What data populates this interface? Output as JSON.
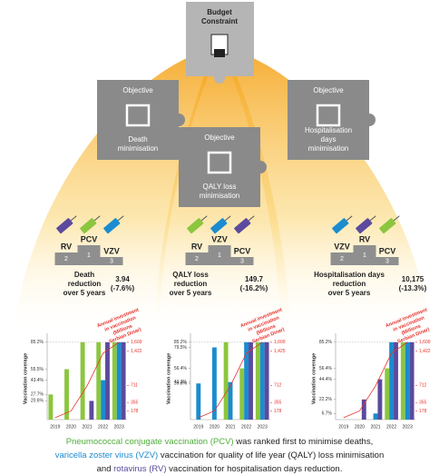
{
  "budget": [
    "Budget",
    "Constraint"
  ],
  "panels": [
    {
      "objective": [
        "Objective",
        "Death",
        "minimisation"
      ],
      "podium": {
        "names": [
          "RV",
          "PCV",
          "VZV"
        ],
        "ranks": [
          2,
          1,
          3
        ]
      },
      "outcome": [
        "Death",
        "reduction",
        "over 5 years"
      ],
      "result": [
        "3.94",
        "(-7.6%)"
      ],
      "chart": {
        "type": "bar",
        "x": [
          "2019",
          "2020",
          "2021",
          "2022",
          "2023"
        ],
        "ylabel": "Vaccination coverage",
        "y2label": [
          "Annual investment",
          "in vaccination",
          "(Millions",
          "Serbian Dinar)"
        ],
        "ylim": [
          0,
          90
        ],
        "yticks": [
          {
            "value": 85.2,
            "label": "85.2%"
          },
          {
            "value": 55.5,
            "label": "55.5%"
          },
          {
            "value": 43.4,
            "label": "43.4%"
          },
          {
            "value": 27.7,
            "label": "27.7%"
          },
          {
            "value": 20.6,
            "label": "20.6%"
          }
        ],
        "y2lim": [
          0,
          1700
        ],
        "y2ticks": [
          {
            "value": 1609,
            "label": "1,609"
          },
          {
            "value": 1422,
            "label": "1,422"
          },
          711,
          355,
          178
        ],
        "series": [
          {
            "color": "#8cc63f",
            "values": [
              27.7,
              55.5,
              85.2,
              85.2,
              85.2
            ]
          },
          {
            "color": "#1b8ccf",
            "values": [
              null,
              null,
              null,
              43.4,
              85.2
            ]
          },
          {
            "color": "#5b4a9e",
            "values": [
              null,
              null,
              20.6,
              85.2,
              85.2
            ]
          },
          {
            "type": "line",
            "axis": "y2",
            "color": "#e8322b",
            "values": [
              40,
              180,
              700,
              1380,
              1609
            ]
          }
        ]
      }
    },
    {
      "objective": [
        "Objective",
        "QALY loss",
        "minimisation"
      ],
      "podium": {
        "names": [
          "RV",
          "VZV",
          "PCV"
        ],
        "ranks": [
          2,
          1,
          3
        ]
      },
      "outcome": [
        "QALY loss",
        "reduction",
        "over 5 years"
      ],
      "result": [
        "149.7",
        "(-16.2%)"
      ],
      "chart": {
        "type": "bar",
        "x": [
          "2019",
          "2020",
          "2021",
          "2022",
          "2023"
        ],
        "ylabel": "Vaccination coverage",
        "y2label": [
          "Annual investment",
          "in vaccination",
          "(Millions",
          "Serbian Dinar)"
        ],
        "ylim": [
          0,
          90
        ],
        "yticks": [
          {
            "value": 85.2,
            "label": "85.2%"
          },
          {
            "value": 79.5,
            "label": "79.5%"
          },
          {
            "value": 56.4,
            "label": "56.4%"
          },
          {
            "value": 41.3,
            "label": "41.3%"
          },
          {
            "value": 39.8,
            "label": "39.8%"
          }
        ],
        "y2lim": [
          0,
          1700
        ],
        "y2ticks": [
          {
            "value": 1609,
            "label": "1,609"
          },
          {
            "value": 1425,
            "label": "1,425"
          },
          712,
          355,
          178
        ],
        "series": [
          {
            "color": "#8cc63f",
            "values": [
              null,
              null,
              85.2,
              56.4,
              85.2
            ]
          },
          {
            "color": "#1b8ccf",
            "values": [
              39.8,
              79.5,
              41.3,
              85.2,
              85.2
            ]
          },
          {
            "color": "#5b4a9e",
            "values": [
              null,
              null,
              null,
              85.2,
              85.2
            ]
          },
          {
            "type": "line",
            "axis": "y2",
            "color": "#e8322b",
            "values": [
              40,
              180,
              700,
              1380,
              1609
            ]
          }
        ]
      }
    },
    {
      "objective": [
        "Objective",
        "Hospitalisation",
        "days",
        "minimisation"
      ],
      "podium": {
        "names": [
          "VZV",
          "RV",
          "PCV"
        ],
        "ranks": [
          2,
          1,
          3
        ]
      },
      "outcome": [
        "Hospitalisation days",
        "reduction",
        "over 5 years"
      ],
      "result": [
        "10,175",
        "(-13.3%)"
      ],
      "chart": {
        "type": "bar",
        "x": [
          "2019",
          "2020",
          "2021",
          "2022",
          "2023"
        ],
        "ylabel": "Vaccination coverage",
        "y2label": [
          "Annual investment",
          "in vaccination",
          "(Millions",
          "Serbian Dinar)"
        ],
        "ylim": [
          0,
          90
        ],
        "yticks": [
          {
            "value": 85.2,
            "label": "85.2%"
          },
          {
            "value": 56.4,
            "label": "56.4%"
          },
          {
            "value": 44.4,
            "label": "44.4%"
          },
          {
            "value": 22.2,
            "label": "22.2%"
          },
          {
            "value": 6.7,
            "label": "6.7%"
          }
        ],
        "y2lim": [
          0,
          1700
        ],
        "y2ticks": [
          {
            "value": 1609,
            "label": "1,609"
          },
          {
            "value": 1422,
            "label": "1,422"
          },
          712,
          355,
          178
        ],
        "series": [
          {
            "color": "#8cc63f",
            "values": [
              null,
              null,
              null,
              56.4,
              85.2
            ]
          },
          {
            "color": "#1b8ccf",
            "values": [
              null,
              null,
              6.7,
              85.2,
              85.2
            ]
          },
          {
            "color": "#5b4a9e",
            "values": [
              null,
              22.2,
              44.4,
              85.2,
              85.2
            ]
          },
          {
            "type": "line",
            "axis": "y2",
            "color": "#e8322b",
            "values": [
              40,
              180,
              700,
              1380,
              1609
            ]
          }
        ]
      }
    }
  ],
  "caption": [
    [
      {
        "text": "Pneumococcal conjugate vaccination (PCV)",
        "color": "#4fae3a"
      },
      {
        "text": " was ranked first to minimise deaths,"
      }
    ],
    [
      {
        "text": "varicella zoster virus (VZV)",
        "color": "#1b8ccf"
      },
      {
        "text": " vaccination for quality of life year (QALY) loss minimisation"
      }
    ],
    [
      {
        "text": "and "
      },
      {
        "text": "rotavirus (RV)",
        "color": "#5b4a9e"
      },
      {
        "text": " vaccination for hospitalisation days reduction."
      }
    ]
  ]
}
